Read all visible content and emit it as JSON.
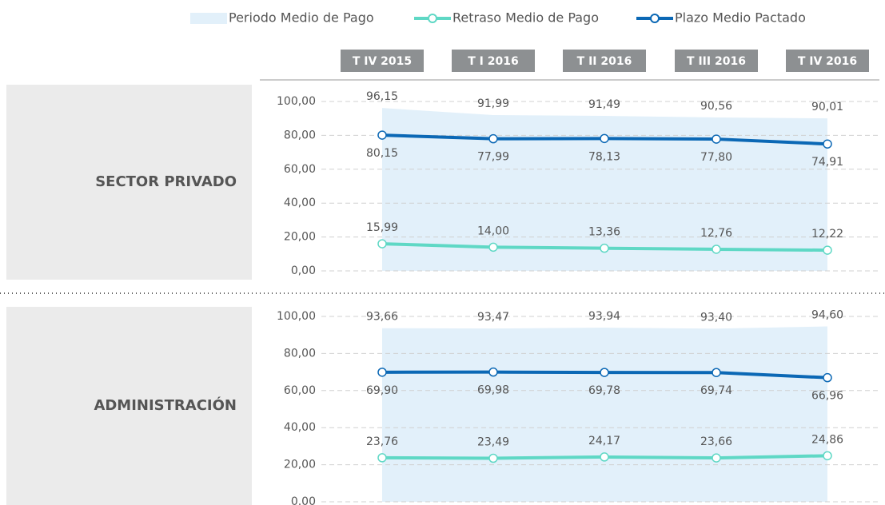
{
  "chart_data": {
    "type": "line",
    "categories": [
      "T IV 2015",
      "T I 2016",
      "T II 2016",
      "T III 2016",
      "T IV 2016"
    ],
    "series": [
      {
        "name": "Periodo Medio de Pago",
        "color": "#e2f0fa",
        "style": "area"
      },
      {
        "name": "Retraso Medio de Pago",
        "color": "#5fd8c5",
        "style": "line"
      },
      {
        "name": "Plazo Medio Pactado",
        "color": "#0b68b5",
        "style": "line"
      }
    ],
    "grid": true,
    "panels": [
      {
        "title": "SECTOR PRIVADO",
        "ylim": [
          0,
          100
        ],
        "yticks": [
          {
            "value": 0,
            "label": "0,00"
          },
          {
            "value": 20,
            "label": "20,00"
          },
          {
            "value": 40,
            "label": "40,00"
          },
          {
            "value": 60,
            "label": "60,00"
          },
          {
            "value": 80,
            "label": "80,00"
          },
          {
            "value": 100,
            "label": "100,00"
          }
        ],
        "series": [
          {
            "values": [
              96.15,
              91.99,
              91.49,
              90.56,
              90.01
            ],
            "value_labels": [
              "96,15",
              "91,99",
              "91,49",
              "90,56",
              "90,01"
            ]
          },
          {
            "values": [
              15.99,
              14.0,
              13.36,
              12.76,
              12.22
            ],
            "value_labels": [
              "15,99",
              "14,00",
              "13,36",
              "12,76",
              "12,22"
            ]
          },
          {
            "values": [
              80.15,
              77.99,
              78.13,
              77.8,
              74.91
            ],
            "value_labels": [
              "80,15",
              "77,99",
              "78,13",
              "77,80",
              "74,91"
            ]
          }
        ]
      },
      {
        "title": "ADMINISTRACIÓN",
        "ylim": [
          0,
          100
        ],
        "yticks": [
          {
            "value": 0,
            "label": "0.00"
          },
          {
            "value": 20,
            "label": "20,00"
          },
          {
            "value": 40,
            "label": "40,00"
          },
          {
            "value": 60,
            "label": "60,00"
          },
          {
            "value": 80,
            "label": "80,00"
          },
          {
            "value": 100,
            "label": "100,00"
          }
        ],
        "series": [
          {
            "values": [
              93.66,
              93.47,
              93.94,
              93.4,
              94.6
            ],
            "value_labels": [
              "93,66",
              "93,47",
              "93,94",
              "93,40",
              "94,60"
            ]
          },
          {
            "values": [
              23.76,
              23.49,
              24.17,
              23.66,
              24.86
            ],
            "value_labels": [
              "23,76",
              "23,49",
              "24,17",
              "23,66",
              "24,86"
            ]
          },
          {
            "values": [
              69.9,
              69.98,
              69.78,
              69.74,
              66.96
            ],
            "value_labels": [
              "69,90",
              "69,98",
              "69,78",
              "69,74",
              "66,96"
            ]
          }
        ]
      }
    ]
  }
}
